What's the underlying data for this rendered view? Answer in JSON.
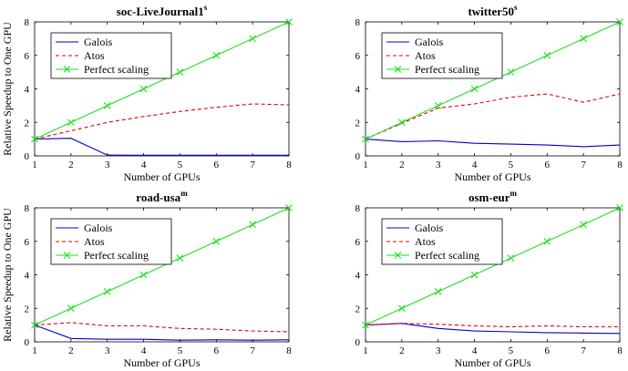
{
  "chart_data": [
    {
      "type": "line",
      "title": "soc-LiveJournal1",
      "title_superscript": "s",
      "xlabel": "Number of GPUs",
      "ylabel": "Relative Speedup to One GPU",
      "x": [
        1,
        2,
        3,
        4,
        5,
        6,
        7,
        8
      ],
      "xlim": [
        1,
        8
      ],
      "ylim": [
        0,
        8
      ],
      "xticks": [
        "1",
        "2",
        "3",
        "4",
        "5",
        "6",
        "7",
        "8"
      ],
      "yticks": [
        "0",
        "2",
        "4",
        "6",
        "8"
      ],
      "legend_position": "top-left",
      "series": [
        {
          "name": "Galois",
          "color": "#0000cc",
          "style": "solid",
          "marker": "none",
          "values": [
            1.0,
            1.05,
            0.05,
            0.04,
            0.04,
            0.04,
            0.04,
            0.04
          ]
        },
        {
          "name": "Atos",
          "color": "#e00000",
          "style": "dashed",
          "marker": "none",
          "values": [
            1.0,
            1.5,
            2.0,
            2.35,
            2.65,
            2.9,
            3.1,
            3.05
          ]
        },
        {
          "name": "Perfect scaling",
          "color": "#22dd22",
          "style": "solid",
          "marker": "x",
          "values": [
            1,
            2,
            3,
            4,
            5,
            6,
            7,
            8
          ]
        }
      ]
    },
    {
      "type": "line",
      "title": "twitter50",
      "title_superscript": "s",
      "xlabel": "Number of GPUs",
      "ylabel": "",
      "x": [
        1,
        2,
        3,
        4,
        5,
        6,
        7,
        8
      ],
      "xlim": [
        1,
        8
      ],
      "ylim": [
        0,
        8
      ],
      "xticks": [
        "1",
        "2",
        "3",
        "4",
        "5",
        "6",
        "7",
        "8"
      ],
      "yticks": [
        "0",
        "2",
        "4",
        "6",
        "8"
      ],
      "legend_position": "top-left",
      "series": [
        {
          "name": "Galois",
          "color": "#0000cc",
          "style": "solid",
          "marker": "none",
          "values": [
            1.0,
            0.85,
            0.9,
            0.75,
            0.7,
            0.65,
            0.55,
            0.65
          ]
        },
        {
          "name": "Atos",
          "color": "#e00000",
          "style": "dashed",
          "marker": "none",
          "values": [
            1.0,
            1.95,
            2.85,
            3.1,
            3.5,
            3.7,
            3.2,
            3.7
          ]
        },
        {
          "name": "Perfect scaling",
          "color": "#22dd22",
          "style": "solid",
          "marker": "x",
          "values": [
            1,
            2,
            3,
            4,
            5,
            6,
            7,
            8
          ]
        }
      ]
    },
    {
      "type": "line",
      "title": "road-usa",
      "title_superscript": "m",
      "xlabel": "Number of GPUs",
      "ylabel": "Relative Speedup to One GPU",
      "x": [
        1,
        2,
        3,
        4,
        5,
        6,
        7,
        8
      ],
      "xlim": [
        1,
        8
      ],
      "ylim": [
        0,
        8
      ],
      "xticks": [
        "1",
        "2",
        "3",
        "4",
        "5",
        "6",
        "7",
        "8"
      ],
      "yticks": [
        "0",
        "2",
        "4",
        "6",
        "8"
      ],
      "legend_position": "top-left",
      "series": [
        {
          "name": "Galois",
          "color": "#0000cc",
          "style": "solid",
          "marker": "none",
          "values": [
            1.0,
            0.2,
            0.15,
            0.15,
            0.1,
            0.12,
            0.1,
            0.12
          ]
        },
        {
          "name": "Atos",
          "color": "#e00000",
          "style": "dashed",
          "marker": "none",
          "values": [
            1.0,
            1.15,
            0.95,
            0.95,
            0.8,
            0.75,
            0.65,
            0.6
          ]
        },
        {
          "name": "Perfect scaling",
          "color": "#22dd22",
          "style": "solid",
          "marker": "x",
          "values": [
            1,
            2,
            3,
            4,
            5,
            6,
            7,
            8
          ]
        }
      ]
    },
    {
      "type": "line",
      "title": "osm-eur",
      "title_superscript": "m",
      "xlabel": "Number of GPUs",
      "ylabel": "",
      "x": [
        1,
        2,
        3,
        4,
        5,
        6,
        7,
        8
      ],
      "xlim": [
        1,
        8
      ],
      "ylim": [
        0,
        8
      ],
      "xticks": [
        "1",
        "2",
        "3",
        "4",
        "5",
        "6",
        "7",
        "8"
      ],
      "yticks": [
        "0",
        "2",
        "4",
        "6",
        "8"
      ],
      "legend_position": "top-left",
      "series": [
        {
          "name": "Galois",
          "color": "#0000cc",
          "style": "solid",
          "marker": "none",
          "values": [
            1.0,
            1.1,
            0.8,
            0.65,
            0.6,
            0.55,
            0.52,
            0.5
          ]
        },
        {
          "name": "Atos",
          "color": "#e00000",
          "style": "dashed",
          "marker": "none",
          "values": [
            1.0,
            1.1,
            1.05,
            0.95,
            0.9,
            0.95,
            0.9,
            0.9
          ]
        },
        {
          "name": "Perfect scaling",
          "color": "#22dd22",
          "style": "solid",
          "marker": "x",
          "values": [
            1,
            2,
            3,
            4,
            5,
            6,
            7,
            8
          ]
        }
      ]
    }
  ]
}
